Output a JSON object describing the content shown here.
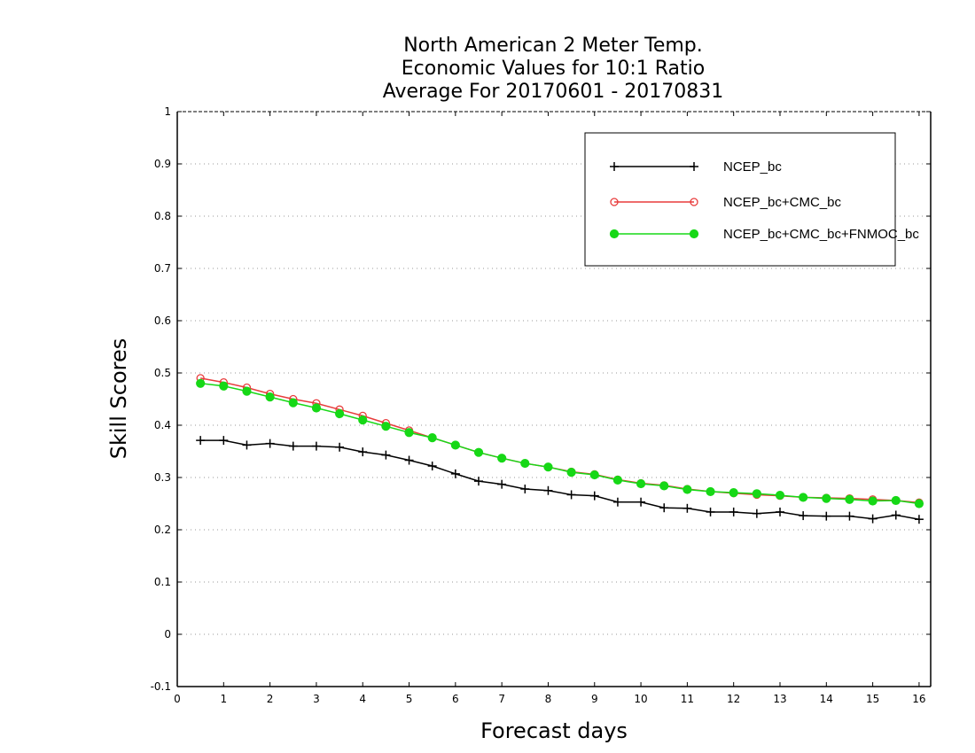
{
  "chart_data": {
    "type": "line",
    "title": [
      "North American 2 Meter Temp.",
      "Economic Values for 10:1 Ratio",
      "Average For 20170601 - 20170831"
    ],
    "xlabel": "Forecast days",
    "ylabel": "Skill Scores",
    "xlim": [
      0,
      16.25
    ],
    "ylim": [
      -0.1,
      1
    ],
    "xticks": [
      0,
      1,
      2,
      3,
      4,
      5,
      6,
      7,
      8,
      9,
      10,
      11,
      12,
      13,
      14,
      15,
      16
    ],
    "xtick_labels": [
      "0",
      "1",
      "2",
      "3",
      "4",
      "5",
      "6",
      "7",
      "8",
      "9",
      "10",
      "11",
      "12",
      "13",
      "14",
      "15",
      "16"
    ],
    "yticks": [
      -0.1,
      0,
      0.1,
      0.2,
      0.3,
      0.4,
      0.5,
      0.6,
      0.7,
      0.8,
      0.9,
      1
    ],
    "ytick_labels": [
      "-0.1",
      "0",
      "0.1",
      "0.2",
      "0.3",
      "0.4",
      "0.5",
      "0.6",
      "0.7",
      "0.8",
      "0.9",
      "1"
    ],
    "grid": true,
    "legend_position": "top-right",
    "x": [
      0.5,
      1,
      1.5,
      2,
      2.5,
      3,
      3.5,
      4,
      4.5,
      5,
      5.5,
      6,
      6.5,
      7,
      7.5,
      8,
      8.5,
      9,
      9.5,
      10,
      10.5,
      11,
      11.5,
      12,
      12.5,
      13,
      13.5,
      14,
      14.5,
      15,
      15.5,
      16
    ],
    "series": [
      {
        "name": "NCEP_bc",
        "color": "#000000",
        "marker": "plus",
        "values": [
          0.371,
          0.371,
          0.362,
          0.365,
          0.36,
          0.36,
          0.358,
          0.349,
          0.343,
          0.333,
          0.322,
          0.307,
          0.293,
          0.287,
          0.278,
          0.275,
          0.267,
          0.265,
          0.253,
          0.253,
          0.242,
          0.241,
          0.234,
          0.234,
          0.231,
          0.234,
          0.227,
          0.226,
          0.226,
          0.221,
          0.228,
          0.22
        ]
      },
      {
        "name": "NCEP_bc+CMC_bc",
        "color": "#e83c3c",
        "marker": "open-circle",
        "values": [
          0.49,
          0.482,
          0.472,
          0.46,
          0.45,
          0.442,
          0.43,
          0.418,
          0.404,
          0.39,
          0.376,
          0.362,
          0.348,
          0.337,
          0.327,
          0.32,
          0.311,
          0.306,
          0.296,
          0.289,
          0.285,
          0.278,
          0.273,
          0.27,
          0.267,
          0.265,
          0.262,
          0.261,
          0.26,
          0.258,
          0.256,
          0.252
        ]
      },
      {
        "name": "NCEP_bc+CMC_bc+FNMOC_bc",
        "color": "#16d816",
        "marker": "filled-circle",
        "values": [
          0.48,
          0.475,
          0.465,
          0.454,
          0.443,
          0.433,
          0.422,
          0.41,
          0.398,
          0.386,
          0.376,
          0.362,
          0.348,
          0.337,
          0.327,
          0.32,
          0.31,
          0.305,
          0.295,
          0.288,
          0.284,
          0.277,
          0.273,
          0.271,
          0.269,
          0.266,
          0.262,
          0.26,
          0.258,
          0.255,
          0.256,
          0.25
        ]
      }
    ]
  }
}
